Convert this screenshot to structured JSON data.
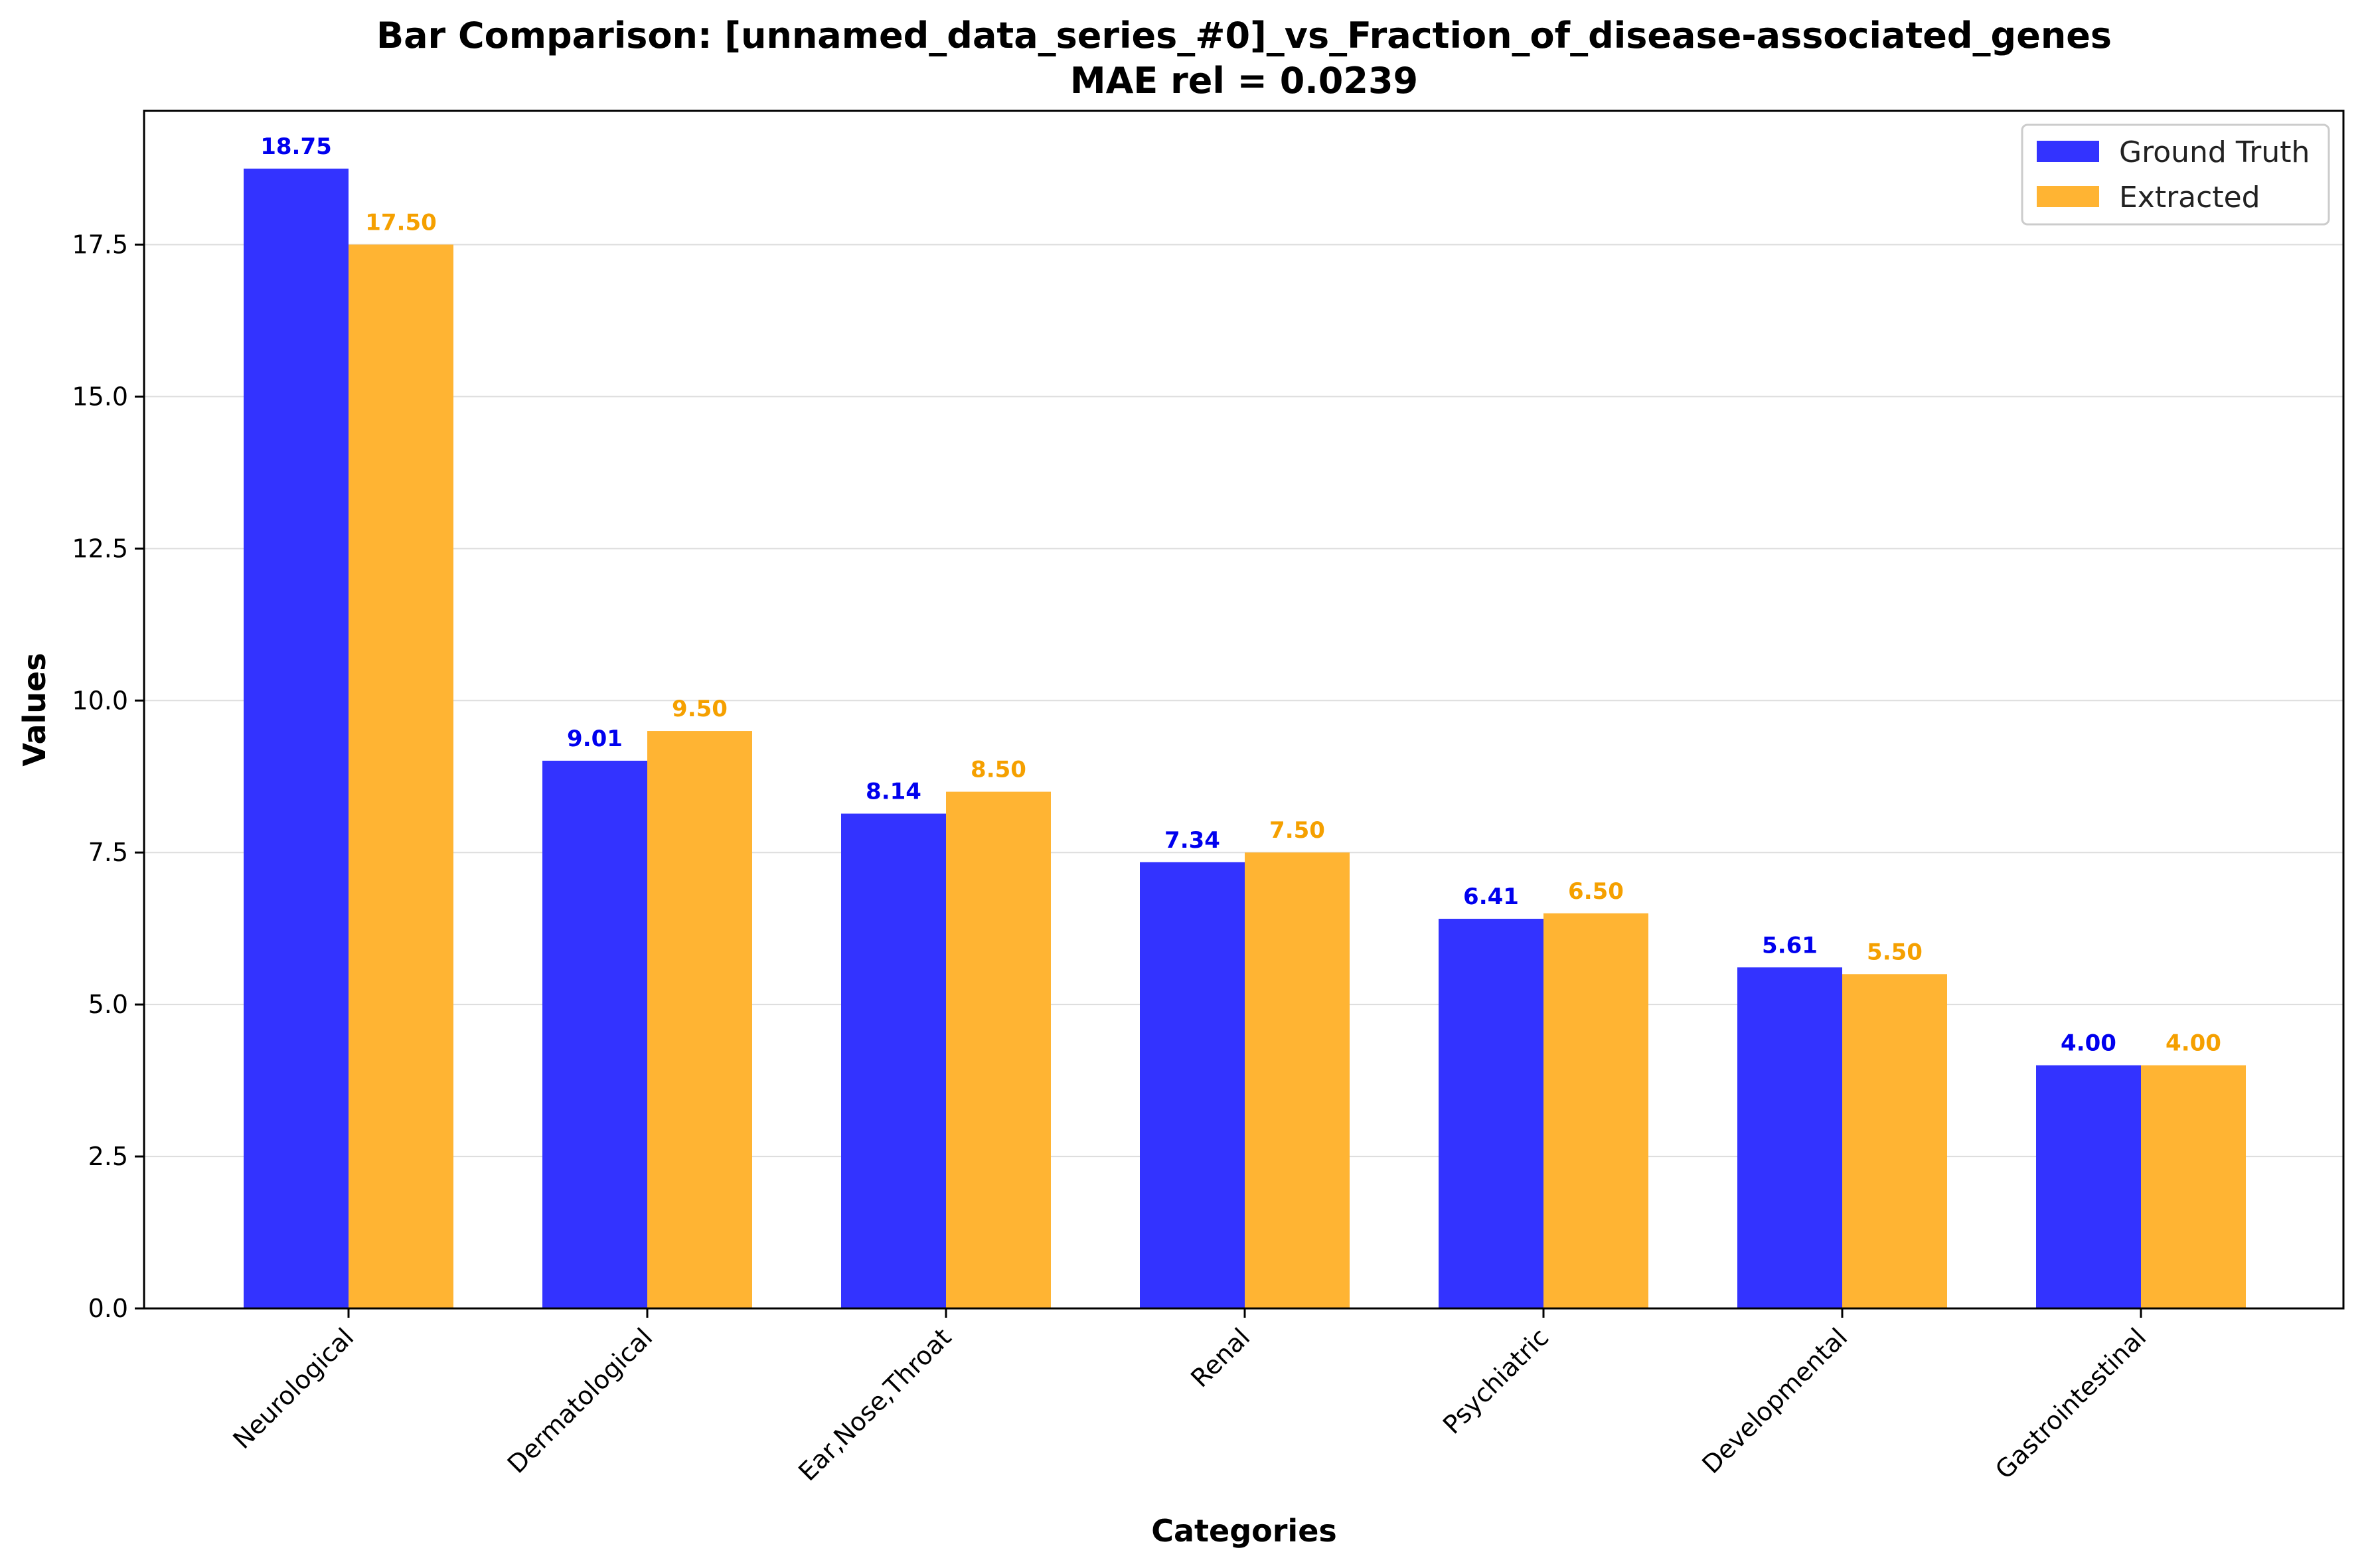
{
  "chart_data": {
    "type": "bar",
    "title": "Bar Comparison: [unnamed_data_series_#0]_vs_Fraction_of_disease-associated_genes",
    "subtitle": "MAE rel = 0.0239",
    "xlabel": "Categories",
    "ylabel": "Values",
    "categories": [
      "Neurological",
      "Dermatological",
      "Ear,Nose,Throat",
      "Renal",
      "Psychiatric",
      "Developmental",
      "Gastrointestinal"
    ],
    "series": [
      {
        "name": "Ground Truth",
        "color": "#3333ff",
        "label_color": "#0000ee",
        "values": [
          18.75,
          9.01,
          8.14,
          7.34,
          6.41,
          5.61,
          4.0
        ],
        "labels": [
          "18.75",
          "9.01",
          "8.14",
          "7.34",
          "6.41",
          "5.61",
          "4.00"
        ]
      },
      {
        "name": "Extracted",
        "color": "#ffb433",
        "label_color": "#f5a000",
        "values": [
          17.5,
          9.5,
          8.5,
          7.5,
          6.5,
          5.5,
          4.0
        ],
        "labels": [
          "17.50",
          "9.50",
          "8.50",
          "7.50",
          "6.50",
          "5.50",
          "4.00"
        ]
      }
    ],
    "ylim": [
      0,
      19.7
    ],
    "yticks": [
      "0.0",
      "2.5",
      "5.0",
      "7.5",
      "10.0",
      "12.5",
      "15.0",
      "17.5"
    ],
    "grid": "horizontal",
    "legend_position": "top-right"
  }
}
